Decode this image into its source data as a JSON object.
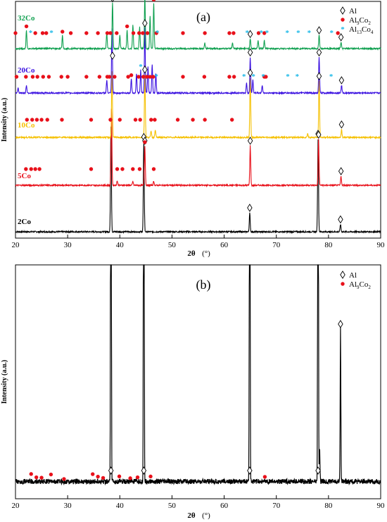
{
  "figure": {
    "panels": [
      {
        "id": "a",
        "label": "(a)",
        "xlabel_main": "2θ",
        "xlabel_unit": "(°)",
        "ylabel": "Intensity (a.u.)",
        "legend": [
          {
            "marker": "diamond",
            "text": "Al",
            "sub": ""
          },
          {
            "marker": "dot",
            "text": "Al",
            "sub": "9",
            "text2": "Co",
            "sub2": "2"
          },
          {
            "marker": "star",
            "text": "Al",
            "sub": "13",
            "text2": "Co",
            "sub2": "4"
          }
        ]
      },
      {
        "id": "b",
        "label": "(b)",
        "xlabel_main": "2θ",
        "xlabel_unit": "(°)",
        "ylabel": "Intensity (a.u.)",
        "legend": [
          {
            "marker": "diamond",
            "text": "Al",
            "sub": ""
          },
          {
            "marker": "dot",
            "text": "Al",
            "sub": "9",
            "text2": "Co",
            "sub2": "2"
          }
        ]
      }
    ],
    "colors": {
      "Al": "#000000",
      "Al9Co2": "#e8101a",
      "Al13Co4": "#1ab8e8",
      "2Co": "#000000",
      "5Co": "#e8101a",
      "10Co": "#f5c000",
      "20Co": "#3a10e0",
      "32Co": "#10a050"
    }
  },
  "chart_data": [
    {
      "type": "line",
      "panel": "a",
      "title": "(a)",
      "xlabel": "2θ (°)",
      "ylabel": "Intensity (a.u.)",
      "xlim": [
        20,
        90
      ],
      "xticks": [
        20,
        30,
        40,
        50,
        60,
        70,
        80,
        90
      ],
      "yticks": "none",
      "grid": false,
      "legend_position": "top-right",
      "series": [
        {
          "name": "2Co",
          "color": "#000000",
          "peaks": [
            [
              38.3,
              1.0
            ],
            [
              44.6,
              0.85
            ],
            [
              64.9,
              0.18
            ],
            [
              78.0,
              0.88
            ],
            [
              82.3,
              0.07
            ]
          ],
          "markers": {
            "Al": [
              44.6,
              64.9,
              78.0,
              82.3
            ]
          }
        },
        {
          "name": "5Co",
          "color": "#e8101a",
          "peaks": [
            [
              38.4,
              1.0
            ],
            [
              44.8,
              0.52
            ],
            [
              65.0,
              0.52
            ],
            [
              78.1,
              0.6
            ],
            [
              82.4,
              0.12
            ],
            [
              39.5,
              0.06
            ],
            [
              42.5,
              0.05
            ],
            [
              46.5,
              0.05
            ]
          ],
          "markers": {
            "Al": [
              44.8,
              65.0,
              78.1,
              82.4
            ],
            "Al9Co2": [
              22.0,
              23.0,
              23.8,
              24.6,
              34.5,
              39.5,
              40.5,
              42.5,
              43.8,
              44.8,
              46.5
            ]
          }
        },
        {
          "name": "10Co",
          "color": "#f5c000",
          "peaks": [
            [
              38.5,
              1.0
            ],
            [
              44.8,
              0.95
            ],
            [
              65.0,
              0.9
            ],
            [
              78.2,
              0.85
            ],
            [
              82.5,
              0.12
            ],
            [
              46.0,
              0.1
            ],
            [
              46.8,
              0.12
            ],
            [
              76.0,
              0.06
            ]
          ],
          "markers": {
            "Al": [
              44.8,
              65.0,
              78.2,
              82.5
            ],
            "Al9Co2": [
              22.2,
              23.2,
              24.1,
              25.0,
              26.1,
              28.9,
              34.5,
              38.2,
              40.0,
              43.0,
              43.9,
              46.0,
              46.7,
              51.1,
              54.0,
              56.3,
              61.5
            ]
          }
        },
        {
          "name": "20Co",
          "color": "#3a10e0",
          "peaks": [
            [
              38.5,
              1.0
            ],
            [
              44.8,
              1.0
            ],
            [
              65.0,
              0.55
            ],
            [
              78.2,
              0.55
            ],
            [
              82.5,
              0.12
            ],
            [
              42.2,
              0.22
            ],
            [
              43.2,
              0.3
            ],
            [
              44.0,
              0.35
            ],
            [
              45.4,
              0.4
            ],
            [
              46.2,
              0.45
            ],
            [
              46.9,
              0.3
            ],
            [
              64.3,
              0.15
            ],
            [
              65.5,
              0.2
            ],
            [
              67.3,
              0.12
            ],
            [
              20.5,
              0.08
            ],
            [
              22.1,
              0.12
            ],
            [
              37.5,
              0.2
            ]
          ],
          "markers": {
            "Al": [
              38.6,
              44.8,
              65.0,
              78.2,
              82.5
            ],
            "Al9Co2": [
              20.2,
              22.0,
              23.3,
              24.2,
              25.3,
              26.4,
              28.8,
              30.0,
              33.6,
              36.1,
              37.6,
              38.0,
              39.0,
              41.6,
              42.2,
              43.6,
              44.5,
              45.2,
              45.8,
              46.4,
              52.1,
              56.2,
              61.0,
              61.9,
              67.7,
              68.0
            ],
            "Al13Co4": [
              44.0,
              47.0,
              63.8,
              65.6,
              67.5,
              72.2,
              74.0,
              80.5
            ]
          }
        },
        {
          "name": "32Co",
          "color": "#10a050",
          "peaks": [
            [
              38.6,
              0.85
            ],
            [
              44.8,
              1.0
            ],
            [
              46.5,
              0.85
            ],
            [
              42.5,
              0.45
            ],
            [
              43.8,
              0.4
            ],
            [
              45.8,
              0.6
            ],
            [
              65.0,
              0.18
            ],
            [
              78.2,
              0.25
            ],
            [
              82.4,
              0.12
            ],
            [
              22.1,
              0.35
            ],
            [
              29.0,
              0.25
            ],
            [
              37.5,
              0.3
            ],
            [
              40.0,
              0.25
            ],
            [
              41.4,
              0.35
            ],
            [
              56.3,
              0.1
            ],
            [
              61.6,
              0.1
            ],
            [
              66.5,
              0.15
            ],
            [
              67.7,
              0.15
            ]
          ],
          "markers": {
            "Al": [
              38.6,
              44.8,
              65.0,
              78.2,
              82.4
            ],
            "Al9Co2": [
              20.0,
              22.1,
              23.8,
              25.2,
              25.9,
              29.0,
              30.6,
              33.6,
              35.8,
              37.6,
              38.2,
              39.4,
              41.4,
              42.6,
              43.7,
              44.4,
              45.3,
              46.5,
              47.0,
              52.1,
              56.3,
              61.0,
              61.8,
              66.6,
              67.7,
              81.8
            ],
            "Al13Co4": [
              22.9,
              26.9,
              44.8,
              47.2,
              64.4,
              67.1,
              68.2,
              72.1,
              74.2,
              76.3,
              80.6
            ]
          }
        }
      ]
    },
    {
      "type": "line",
      "panel": "b",
      "title": "(b)",
      "xlabel": "2θ (°)",
      "ylabel": "Intensity (a.u.)",
      "xlim": [
        20,
        90
      ],
      "xticks": [
        20,
        30,
        40,
        50,
        60,
        70,
        80,
        90
      ],
      "yticks": "none",
      "grid": false,
      "legend_position": "top-right",
      "series": [
        {
          "name": "",
          "color": "#000000",
          "peaks": [
            [
              38.3,
              3.0
            ],
            [
              44.6,
              3.0
            ],
            [
              64.9,
              3.0
            ],
            [
              78.0,
              3.0
            ],
            [
              78.3,
              0.15
            ],
            [
              82.3,
              0.68
            ]
          ],
          "markers": {
            "Al": [
              38.3,
              44.6,
              64.9,
              78.0,
              82.3
            ],
            "Al9Co2": [
              23.0,
              24.0,
              25.0,
              26.8,
              29.3,
              34.8,
              35.8,
              36.8,
              39.9,
              42.0,
              43.4,
              45.9,
              67.8
            ]
          }
        }
      ]
    }
  ]
}
